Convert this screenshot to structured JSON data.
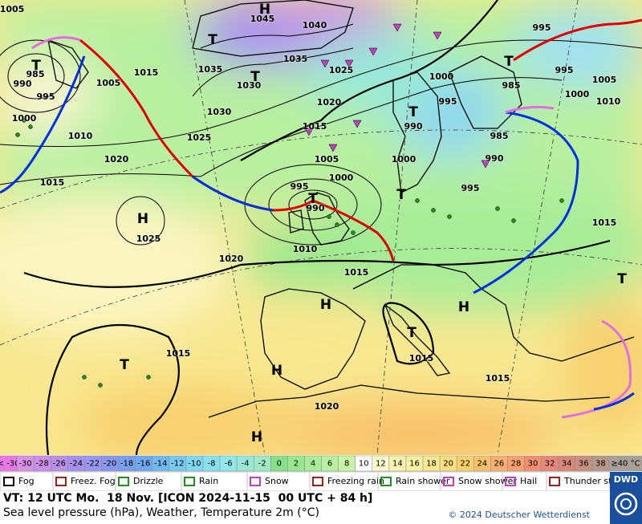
{
  "map": {
    "pressure_labels": [
      "1005",
      "1045",
      "1040",
      "1035",
      "1035",
      "1030",
      "1025",
      "1020",
      "1015",
      "1005",
      "1000",
      "995",
      "990",
      "1010",
      "1015",
      "1020",
      "1025",
      "1030",
      "1020",
      "1025",
      "1015",
      "1010",
      "1000",
      "995",
      "990",
      "985",
      "1005",
      "1015",
      "1000",
      "995",
      "990",
      "1000",
      "995",
      "985",
      "990",
      "995",
      "995",
      "985",
      "1000",
      "1005",
      "1010",
      "1015",
      "1015",
      "1015",
      "1015",
      "1020"
    ],
    "pressure_centers": [
      "H",
      "T",
      "T",
      "T",
      "H",
      "T",
      "T",
      "T",
      "H",
      "H",
      "T",
      "H",
      "H",
      "T",
      "T",
      "T"
    ]
  },
  "temperature_scale": {
    "low_label": "< -30",
    "values": [
      -30,
      -28,
      -26,
      -24,
      -22,
      -20,
      -18,
      -16,
      -14,
      -12,
      -10,
      -8,
      -6,
      -4,
      -2,
      0,
      2,
      4,
      6,
      8,
      10,
      12,
      14,
      16,
      18,
      20,
      22,
      24,
      26,
      28,
      30,
      32,
      34,
      36,
      38
    ],
    "colors": [
      "#d890e8",
      "#c890e8",
      "#b890e8",
      "#a890f0",
      "#9898f0",
      "#8898f0",
      "#78a0f0",
      "#70a8f0",
      "#70b8f0",
      "#78c8f0",
      "#80d8f0",
      "#88e0f0",
      "#90e8e8",
      "#98e8d8",
      "#a0e8c8",
      "#88e088",
      "#98e890",
      "#a8ec98",
      "#b8f0a0",
      "#c8f4a8",
      "#ffffff",
      "#fafad0",
      "#f8f4b0",
      "#f8f0a0",
      "#f8e890",
      "#f8e080",
      "#f8d070",
      "#f8c068",
      "#f8b070",
      "#f8a070",
      "#f09070",
      "#e88878",
      "#d88878",
      "#c89080",
      "#b89888"
    ],
    "low_color": "#e878e8",
    "high_label": "≥40 °C",
    "high_color": "#a8a098"
  },
  "legend": [
    "Fog",
    "Freez. Fog",
    "Drizzle",
    "Rain",
    "Snow",
    "Freezing rain",
    "Rain shower",
    "Snow shower",
    "Hail",
    "Thunder storm"
  ],
  "footer": {
    "valid_time": "VT: 12 UTC Mo.  18 Nov. [ICON 2024-11-15  00 UTC + 84 h]",
    "description": "Sea level pressure (hPa), Weather, Temperature 2m (°C)",
    "copyright": "© 2024 Deutscher Wetterdienst",
    "logo": "DWD"
  }
}
